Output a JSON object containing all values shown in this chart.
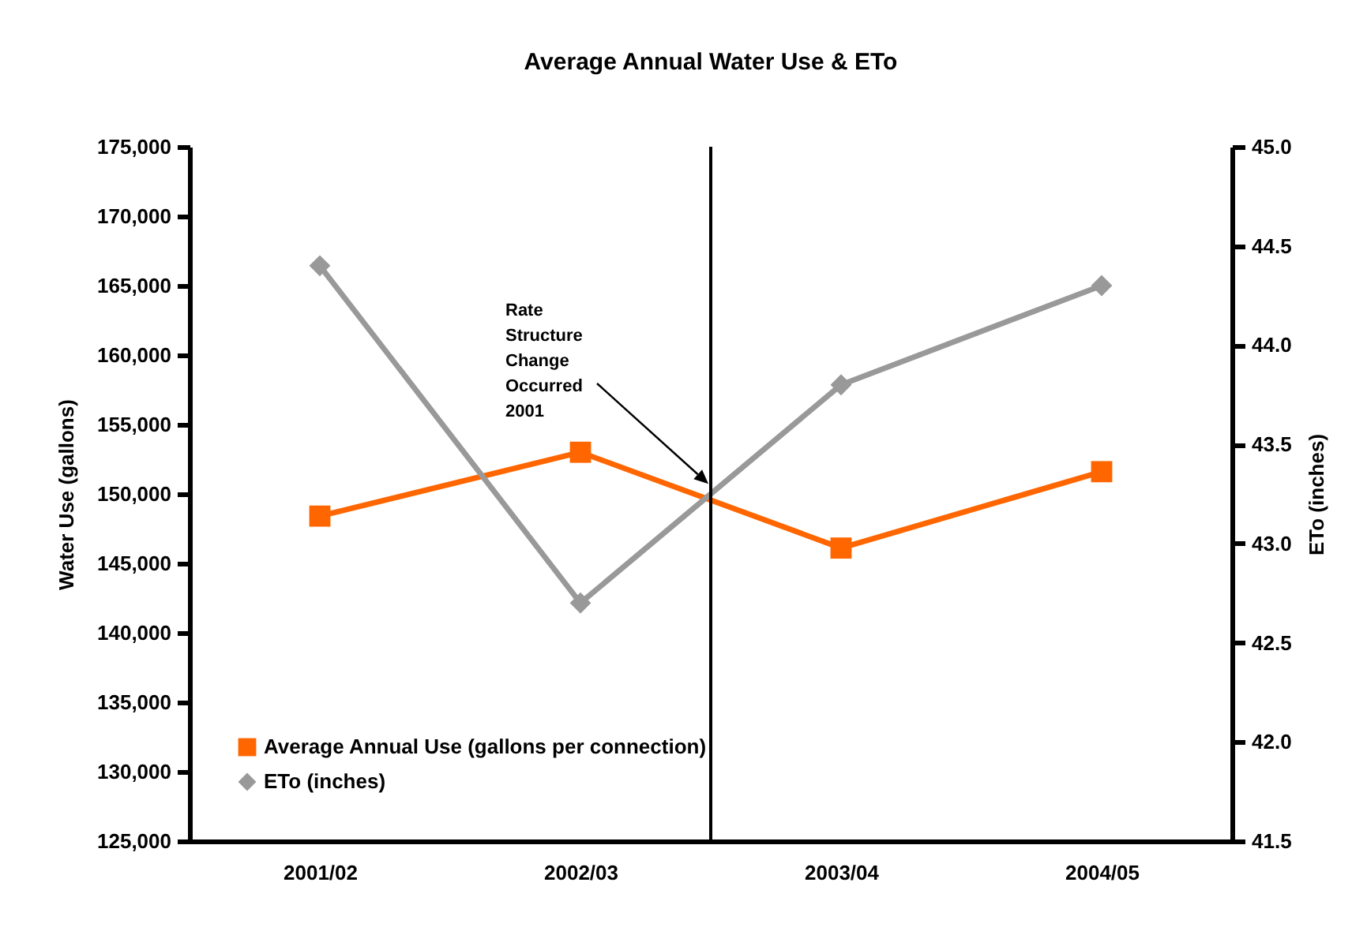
{
  "chart_data": {
    "type": "line",
    "title": "Average Annual Water Use & ETo",
    "categories": [
      "2001/02",
      "2002/03",
      "2003/04",
      "2004/05"
    ],
    "ylabel": "Water Use (gallons)",
    "y2label": "ETo (inches)",
    "ylim": [
      125000,
      175000
    ],
    "yticks": [
      {
        "value": 125000,
        "label": "125,000"
      },
      {
        "value": 130000,
        "label": "130,000"
      },
      {
        "value": 135000,
        "label": "135,000"
      },
      {
        "value": 140000,
        "label": "140,000"
      },
      {
        "value": 145000,
        "label": "145,000"
      },
      {
        "value": 150000,
        "label": "150,000"
      },
      {
        "value": 155000,
        "label": "155,000"
      },
      {
        "value": 160000,
        "label": "160,000"
      },
      {
        "value": 165000,
        "label": "165,000"
      },
      {
        "value": 170000,
        "label": "170,000"
      },
      {
        "value": 175000,
        "label": "175,000"
      }
    ],
    "y2lim": [
      41.5,
      45.0
    ],
    "y2ticks": [
      {
        "value": 41.5,
        "label": "41.5"
      },
      {
        "value": 42,
        "label": "42.0"
      },
      {
        "value": 42.5,
        "label": "42.5"
      },
      {
        "value": 43,
        "label": "43.0"
      },
      {
        "value": 43.5,
        "label": "43.5"
      },
      {
        "value": 44,
        "label": "44.0"
      },
      {
        "value": 44.5,
        "label": "44.5"
      },
      {
        "value": 45,
        "label": "45.0"
      }
    ],
    "series": [
      {
        "name": "Average Annual Use (gallons per connection)",
        "color": "#ff6600",
        "marker": "square",
        "values": [
          148400,
          153000,
          146100,
          151600
        ]
      },
      {
        "name": "ETo (inches)",
        "color": "#999999",
        "marker": "diamond",
        "axis": "y2",
        "values": [
          44.4,
          42.7,
          43.8,
          44.3
        ]
      }
    ],
    "annotations": [
      "Rate Structure Change Occurred 2001"
    ],
    "legend": "bottom left",
    "grid": false
  }
}
